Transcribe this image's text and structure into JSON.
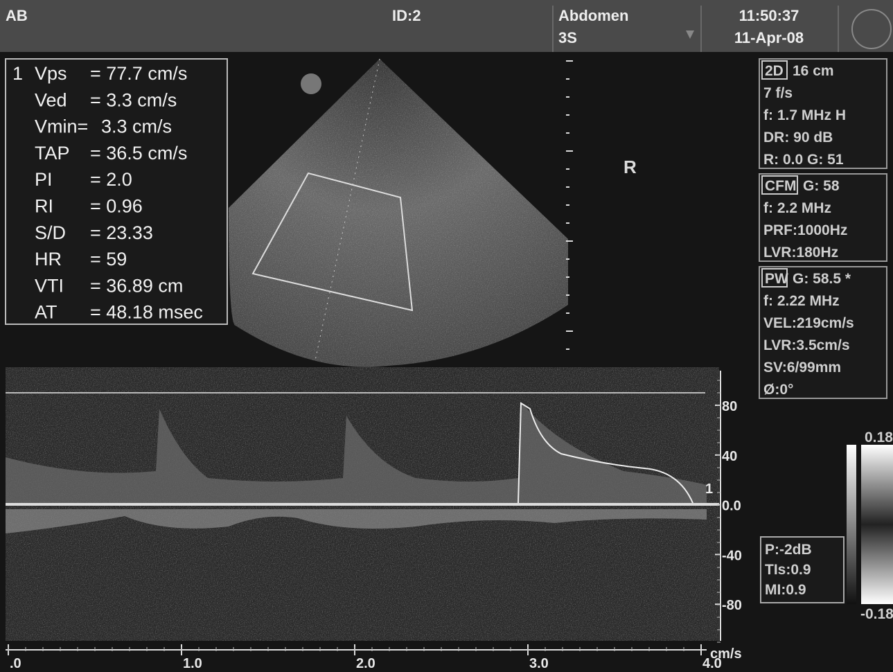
{
  "header": {
    "patient": "AB",
    "id": "ID:2",
    "preset": "Abdomen",
    "probe": "3S",
    "time": "11:50:37",
    "date": "11-Apr-08"
  },
  "measurements": {
    "index": "1",
    "rows": [
      [
        "Vps",
        "= 77.7 cm/s"
      ],
      [
        "Ved",
        "=  3.3 cm/s"
      ],
      [
        "Vmin=",
        "3.3 cm/s"
      ],
      [
        "TAP",
        "= 36.5 cm/s"
      ],
      [
        "PI",
        "=  2.0"
      ],
      [
        "RI",
        "= 0.96"
      ],
      [
        "S/D",
        "= 23.33"
      ],
      [
        "HR",
        "= 59"
      ],
      [
        "VTI",
        "= 36.89 cm"
      ],
      [
        "AT",
        "= 48.18 msec"
      ]
    ]
  },
  "image": {
    "orientation": "R"
  },
  "panels": [
    {
      "mode": "2D",
      "first": "16 cm",
      "lines": [
        "7 f/s",
        "f: 1.7 MHz H",
        "DR: 90 dB",
        "R: 0.0   G: 51"
      ]
    },
    {
      "mode": "CFM",
      "first": "G: 58",
      "lines": [
        "f: 2.2 MHz",
        "PRF:1000Hz",
        "LVR:180Hz"
      ]
    },
    {
      "mode": "PW",
      "first": "G: 58.5 *",
      "lines": [
        "f: 2.22 MHz",
        "VEL:219cm/s",
        "LVR:3.5cm/s",
        "SV:6/99mm",
        "Ø:0°"
      ]
    }
  ],
  "power": [
    "P:-2dB",
    "TIs:0.9",
    "MI:0.9"
  ],
  "color_bar": {
    "top": "0.18",
    "bottom": "-0.18"
  },
  "doppler": {
    "velocity_ticks": [
      "80",
      "40",
      "0.0",
      "-40",
      "-80"
    ],
    "unit": "cm/s",
    "time_ticks": [
      ".0",
      "1.0",
      "2.0",
      "3.0",
      "4.0"
    ],
    "cursor_label": "1"
  }
}
